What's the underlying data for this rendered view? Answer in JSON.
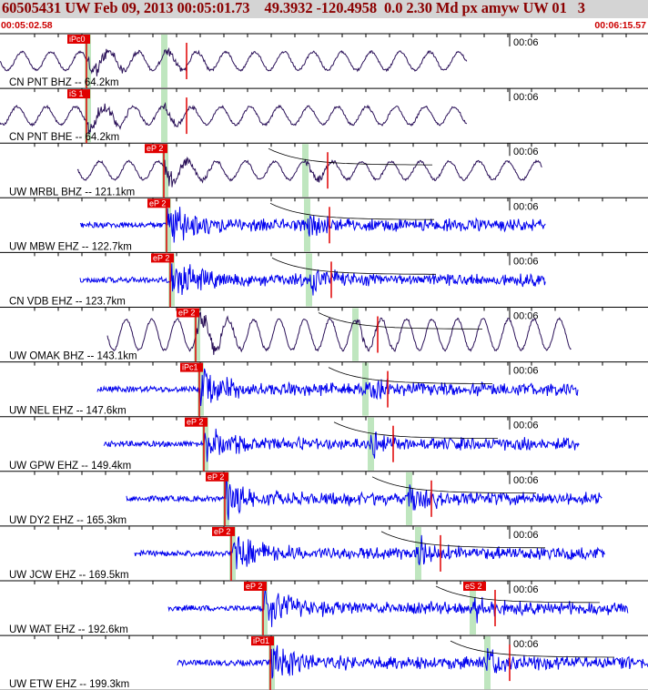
{
  "header": {
    "title": "60505431 UW Feb 09, 2013 00:05:01.73    49.3932 -120.4958  0.0 2.30 Md px amyw UW 01   3",
    "start_time": "00:05:02.58",
    "end_time": "00:06:15.57"
  },
  "colors": {
    "header_bg": "#d4d4d4",
    "header_text": "#8b0000",
    "time_text": "#cc0000",
    "broadband_trace": "#2a1058",
    "short_period_trace": "#0000ee",
    "pick_color": "#e00000",
    "window_color": "#bfe6bf",
    "grid": "#000000"
  },
  "chart_data": {
    "type": "seismogram",
    "time_tick_label": "00:06",
    "traces": [
      {
        "label": "CN PNT BHZ -- 64.2km",
        "kind": "broadband",
        "pick": "iPc0",
        "p_time": 96,
        "s_time": 180,
        "tail_end": 513
      },
      {
        "label": "CN PNT BHE -- 64.2km",
        "kind": "broadband",
        "pick": "iS 1",
        "p_time": 96,
        "s_time": 180,
        "tail_end": 513
      },
      {
        "label": "UW MRBL BHZ -- 121.1km",
        "kind": "broadband",
        "pick": "eP 2",
        "p_time": 181,
        "s_time": 335,
        "tail_end": 596
      },
      {
        "label": "UW MBW EHZ -- 122.7km",
        "kind": "short",
        "pick": "eP 2",
        "p_time": 184,
        "s_time": 337,
        "tail_end": 600
      },
      {
        "label": "CN VDB EHZ -- 123.7km",
        "kind": "short",
        "pick": "eP 2",
        "p_time": 188,
        "s_time": 339,
        "tail_end": 600
      },
      {
        "label": "UW OMAK BHZ -- 143.1km",
        "kind": "broadband",
        "pick": "eP 2",
        "p_time": 216,
        "s_time": 390,
        "tail_end": 628
      },
      {
        "label": "UW NEL EHZ -- 147.6km",
        "kind": "short",
        "pick": "iPc1",
        "p_time": 220,
        "s_time": 401,
        "tail_end": 635
      },
      {
        "label": "UW GPW EHZ -- 149.4km",
        "kind": "short",
        "pick": "eP 2",
        "p_time": 225,
        "s_time": 407,
        "tail_end": 637
      },
      {
        "label": "UW DY2 EHZ -- 165.3km",
        "kind": "short",
        "pick": "eP 2",
        "p_time": 248,
        "s_time": 449,
        "tail_end": 662
      },
      {
        "label": "UW JCW EHZ -- 169.5km",
        "kind": "short",
        "pick": "eP 2",
        "p_time": 255,
        "s_time": 459,
        "tail_end": 665
      },
      {
        "label": "UW WAT EHZ -- 192.6km",
        "kind": "short",
        "pick": "eP 2",
        "pick2": "eS 2",
        "p_time": 290,
        "s_time": 519,
        "tail_end": 690
      },
      {
        "label": "UW ETW EHZ -- 199.3km",
        "kind": "short",
        "pick": "iPd1",
        "p_time": 298,
        "s_time": 535,
        "tail_end": 712
      }
    ]
  }
}
